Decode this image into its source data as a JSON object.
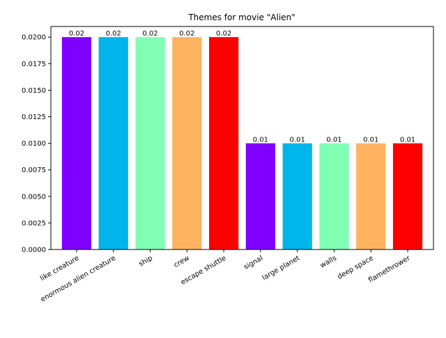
{
  "chart_data": {
    "type": "bar",
    "title": "Themes for movie \"Alien\"",
    "xlabel": "",
    "ylabel": "",
    "categories": [
      "like creature",
      "enormous alien creature",
      "ship",
      "crew",
      "escape shuttle",
      "signal",
      "large planet",
      "walls",
      "deep space",
      "flamethrower"
    ],
    "values": [
      0.02,
      0.02,
      0.02,
      0.02,
      0.02,
      0.01,
      0.01,
      0.01,
      0.01,
      0.01
    ],
    "data_labels": [
      "0.02",
      "0.02",
      "0.02",
      "0.02",
      "0.02",
      "0.01",
      "0.01",
      "0.01",
      "0.01",
      "0.01"
    ],
    "colors": [
      "#8000ff",
      "#00b5eb",
      "#80ffb4",
      "#ffb360",
      "#ff0000",
      "#8000ff",
      "#00b5eb",
      "#80ffb4",
      "#ffb360",
      "#ff0000"
    ],
    "ylim": [
      0,
      0.021
    ],
    "yticks": [
      "0.0000",
      "0.0025",
      "0.0050",
      "0.0075",
      "0.0100",
      "0.0125",
      "0.0150",
      "0.0175",
      "0.0200"
    ],
    "ytick_values": [
      0,
      0.0025,
      0.005,
      0.0075,
      0.01,
      0.0125,
      0.015,
      0.0175,
      0.02
    ],
    "xtick_rotation_deg": 30,
    "grid": false,
    "legend": "none"
  }
}
